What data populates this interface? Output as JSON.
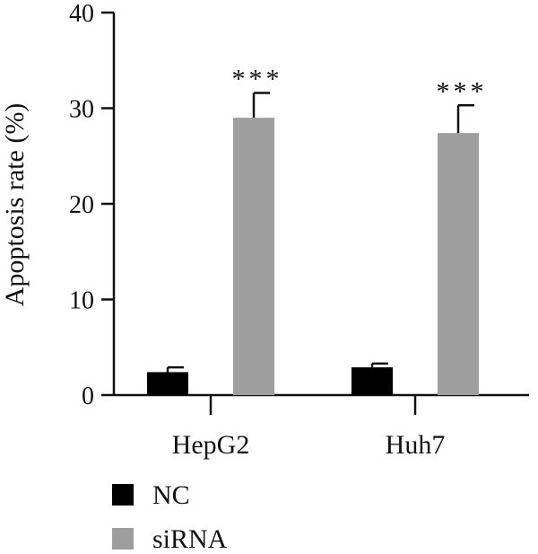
{
  "chart_data": {
    "type": "bar",
    "title": "",
    "xlabel": "",
    "ylabel": "Apoptosis rate (%)",
    "ylim": [
      0,
      40
    ],
    "yticks": [
      "0",
      "10",
      "20",
      "30",
      "40"
    ],
    "categories": [
      "HepG2",
      "Huh7"
    ],
    "series": [
      {
        "name": "NC",
        "values": [
          2.4,
          2.9
        ],
        "errors": [
          0.5,
          0.4
        ],
        "color": "#000000"
      },
      {
        "name": "siRNA",
        "values": [
          29.0,
          27.4
        ],
        "errors": [
          2.6,
          2.9
        ],
        "color": "#9e9e9e"
      }
    ],
    "annotations": [
      {
        "category": "HepG2",
        "series": "siRNA",
        "text": "***"
      },
      {
        "category": "Huh7",
        "series": "siRNA",
        "text": "***"
      }
    ],
    "legend_position": "bottom-left",
    "grid": false
  }
}
